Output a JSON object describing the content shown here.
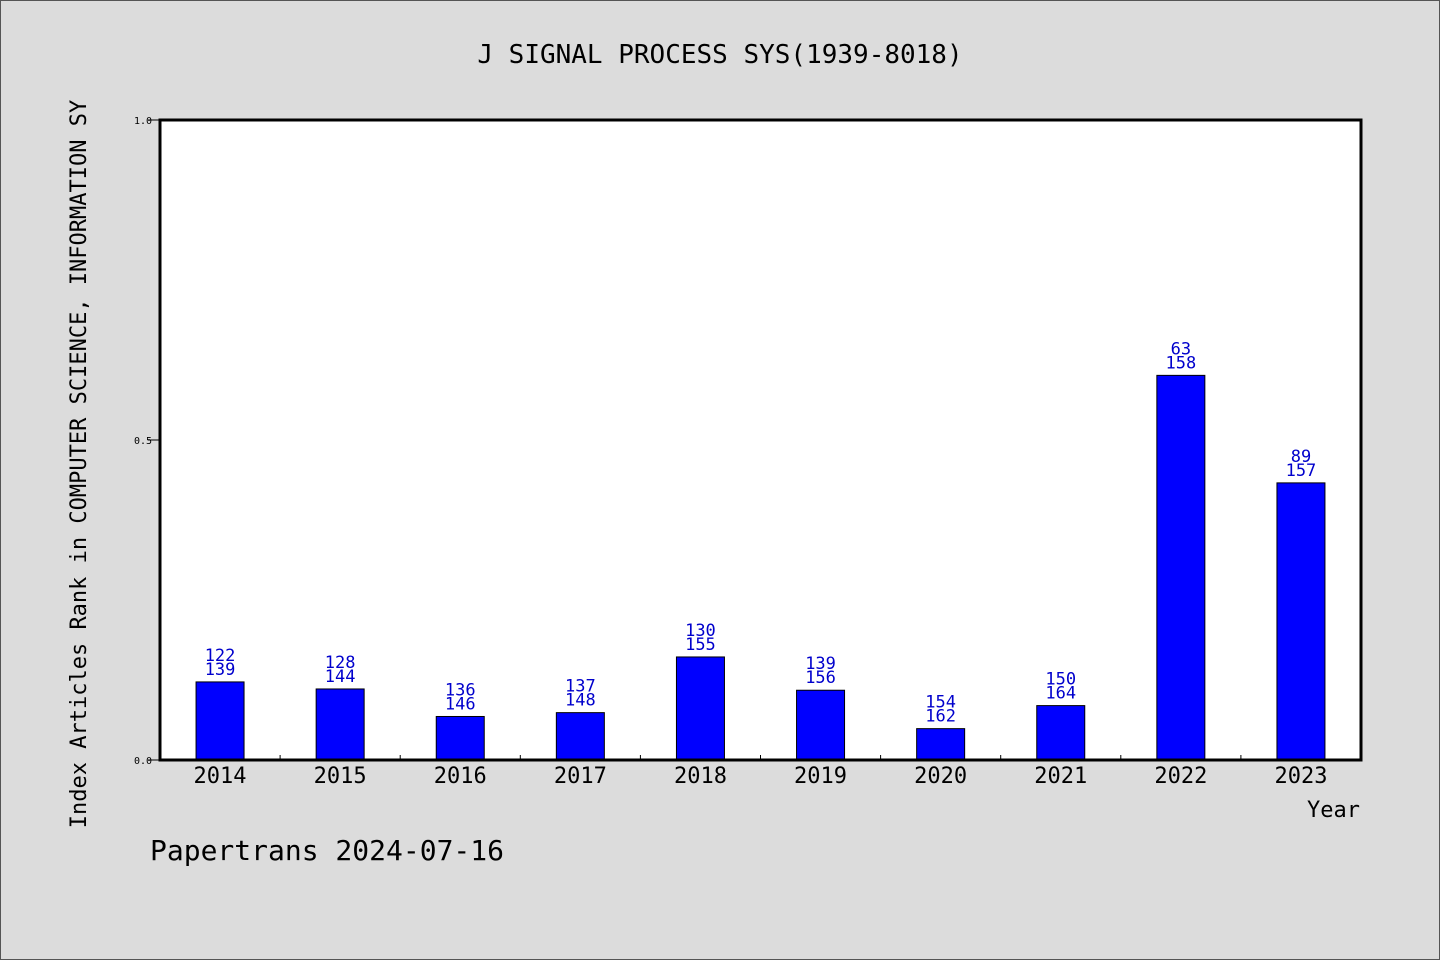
{
  "chart_data": {
    "type": "bar",
    "title": "J SIGNAL PROCESS SYS(1939-8018)",
    "xlabel": "Year",
    "ylabel": "Index Articles Rank in COMPUTER SCIENCE, INFORMATION SY",
    "ylim": [
      0,
      1.0
    ],
    "yticks": [
      "0.0",
      "0.5",
      "1.0"
    ],
    "categories": [
      "2014",
      "2015",
      "2016",
      "2017",
      "2018",
      "2019",
      "2020",
      "2021",
      "2022",
      "2023"
    ],
    "values": [
      0.122,
      0.111,
      0.068,
      0.074,
      0.161,
      0.109,
      0.049,
      0.085,
      0.601,
      0.433
    ],
    "bar_labels_top": [
      "122",
      "128",
      "136",
      "137",
      "130",
      "139",
      "154",
      "150",
      "63",
      "89"
    ],
    "bar_labels_bottom": [
      "139",
      "144",
      "146",
      "148",
      "155",
      "156",
      "162",
      "164",
      "158",
      "157"
    ],
    "grid": false,
    "bar_color": "#0000ff",
    "label_color": "#0000cc"
  },
  "footer": {
    "text": "Papertrans 2024-07-16"
  }
}
